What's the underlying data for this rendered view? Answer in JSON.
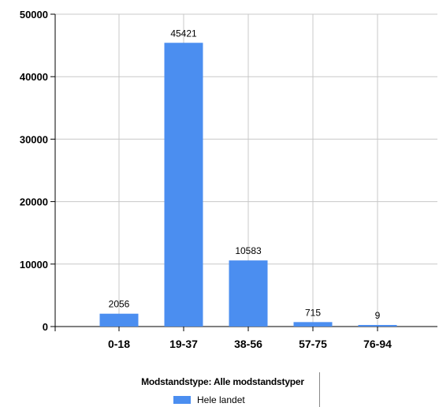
{
  "chart_data": {
    "type": "bar",
    "categories": [
      "0-18",
      "19-37",
      "38-56",
      "57-75",
      "76-94"
    ],
    "series": [
      {
        "name": "Hele landet",
        "values": [
          2056,
          45421,
          10583,
          715,
          9
        ],
        "color": "#4b8ef0"
      }
    ],
    "data_labels": [
      "2056",
      "45421",
      "10583",
      "715",
      "9"
    ],
    "y_ticks": [
      "0",
      "10000",
      "20000",
      "30000",
      "40000",
      "50000"
    ],
    "ylim": [
      0,
      50000
    ],
    "grid": true,
    "legend": {
      "position": "bottom",
      "title": "Modstandstype: Alle modstandstyper",
      "entries": [
        "Hele landet"
      ]
    }
  }
}
